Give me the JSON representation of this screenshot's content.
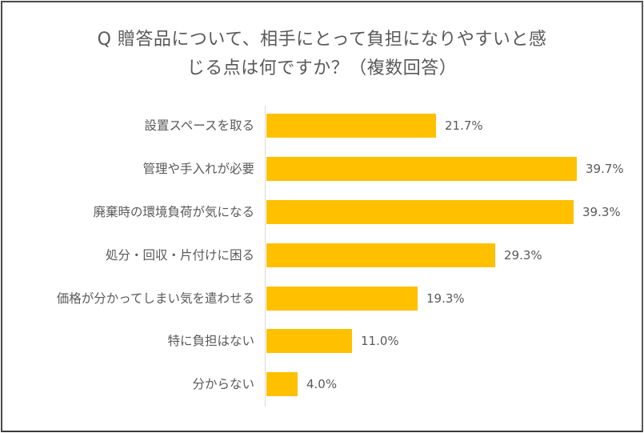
{
  "chart_data": {
    "type": "bar",
    "orientation": "horizontal",
    "title": "Q 贈答品について、相手にとって負担になりやすいと感じる点は何ですか？（複数回答）",
    "title_lines": [
      "Q 贈答品について、相手にとって負担になりやすいと感",
      "じる点は何ですか？（複数回答）"
    ],
    "categories": [
      "設置スペースを取る",
      "管理や手入れが必要",
      "廃棄時の環境負荷が気になる",
      "処分・回収・片付けに困る",
      "価格が分かってしまい気を遣わせる",
      "特に負担はない",
      "分からない"
    ],
    "values": [
      21.7,
      39.7,
      39.3,
      29.3,
      19.3,
      11.0,
      4.0
    ],
    "value_labels": [
      "21.7%",
      "39.7%",
      "39.3%",
      "29.3%",
      "19.3%",
      "11.0%",
      "4.0%"
    ],
    "unit": "%",
    "xlabel": "",
    "ylabel": "",
    "grid": false,
    "legend": null,
    "bar_color": "#ffc000"
  },
  "colors": {
    "bar": "#ffc000",
    "text": "#595959",
    "axis": "#d9d9d9",
    "frame": "#4a4a4a"
  }
}
